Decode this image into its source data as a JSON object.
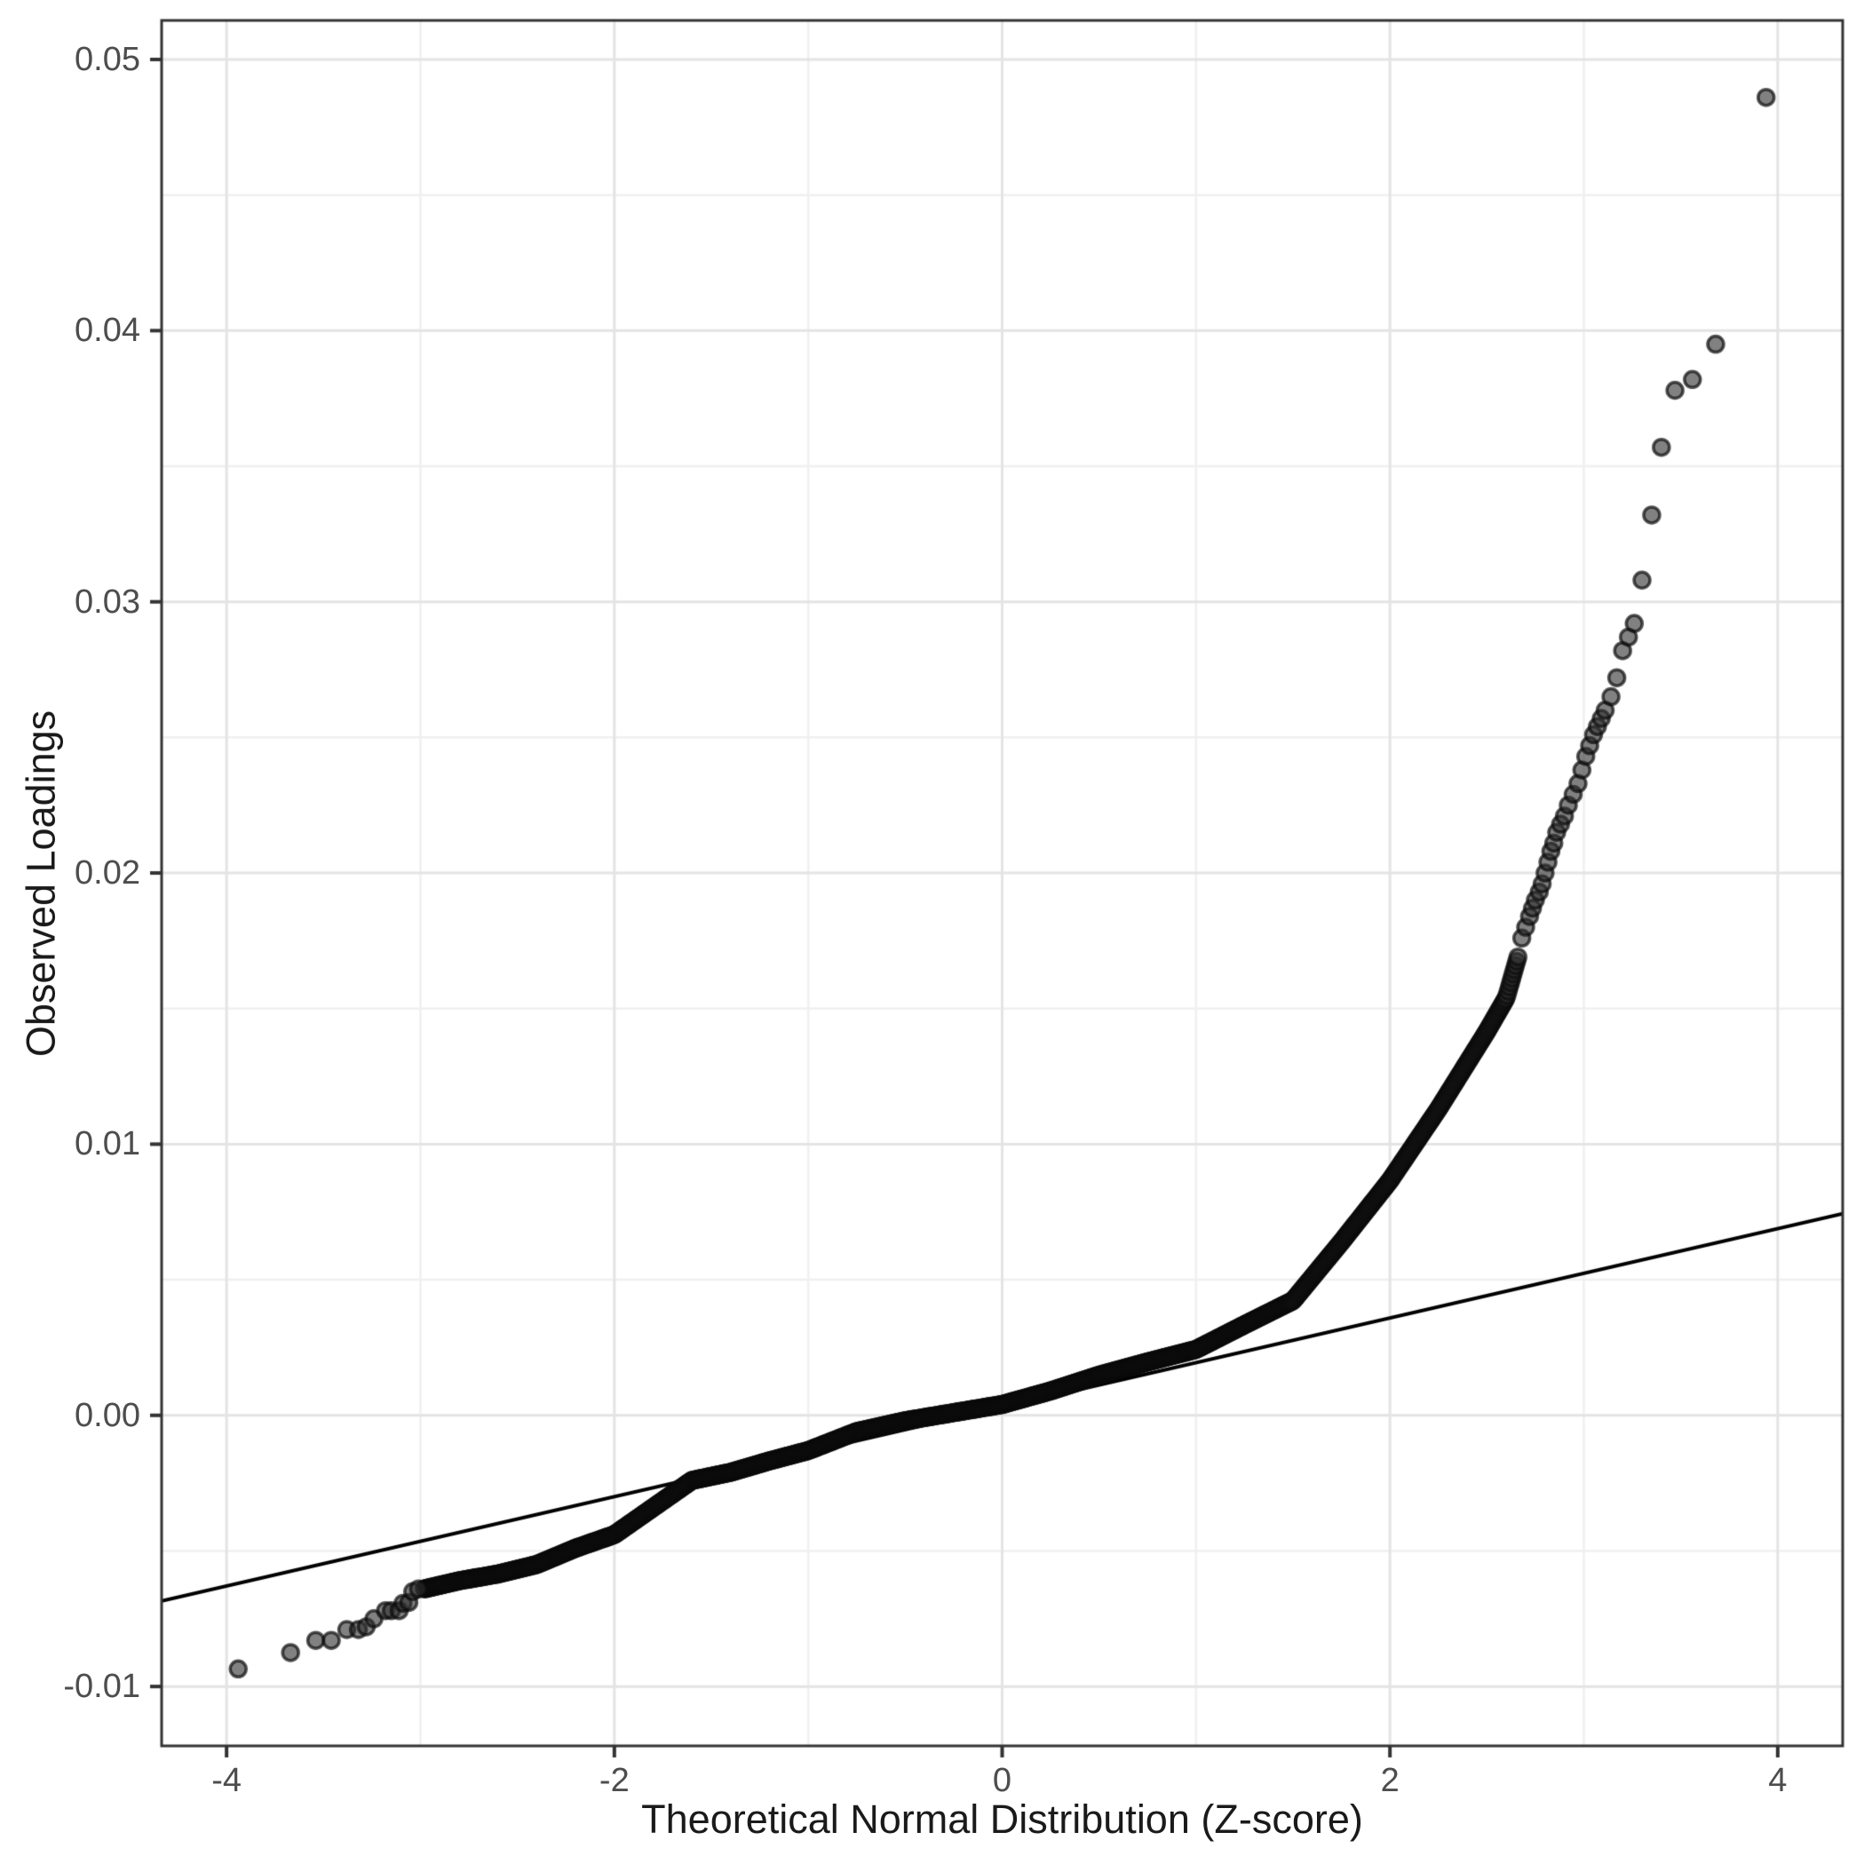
{
  "chart_data": {
    "type": "scatter",
    "subtype": "qq-plot",
    "title": "",
    "xlabel": "Theoretical Normal Distribution (Z-score)",
    "ylabel": "Observed Loadings",
    "grid": true,
    "legend": "none",
    "x_axis": {
      "range": [
        -4.335,
        4.335
      ],
      "ticks": [
        -4,
        -2,
        0,
        2,
        4
      ],
      "tick_labels": [
        "-4",
        "-2",
        "0",
        "2",
        "4"
      ],
      "minor_ticks": [
        -3,
        -1,
        1,
        3
      ]
    },
    "y_axis": {
      "range": [
        -0.01219,
        0.05144
      ],
      "ticks": [
        0.05,
        0.04,
        0.03,
        0.02,
        0.01,
        0.0,
        -0.01
      ],
      "tick_labels": [
        "0.05",
        "0.04",
        "0.03",
        "0.02",
        "0.01",
        "0.00",
        "-0.01"
      ],
      "minor_ticks": [
        0.045,
        0.035,
        0.025,
        0.015,
        0.005,
        -0.005
      ]
    },
    "reference_line": {
      "slope": 0.001648,
      "intercept": 0.000295,
      "color": "#000000",
      "width": 4
    },
    "series": {
      "dense_band": {
        "description": "densely overlapping observed-loading quantiles drawn as one point per sampled z",
        "z_start": -2.98,
        "z_end": 2.66,
        "n": 900,
        "anchors": [
          [
            -2.98,
            -0.0064
          ],
          [
            -2.8,
            -0.0061
          ],
          [
            -2.6,
            -0.00585
          ],
          [
            -2.4,
            -0.0055
          ],
          [
            -2.2,
            -0.0049
          ],
          [
            -2.0,
            -0.0044
          ],
          [
            -1.8,
            -0.0034
          ],
          [
            -1.6,
            -0.0024
          ],
          [
            -1.4,
            -0.0021
          ],
          [
            -1.2,
            -0.00168
          ],
          [
            -1.0,
            -0.0013
          ],
          [
            -0.75,
            -0.0006
          ],
          [
            -0.5,
            -0.0002
          ],
          [
            -0.25,
            0.0001
          ],
          [
            0.0,
            0.0004
          ],
          [
            0.25,
            0.0009
          ],
          [
            0.5,
            0.00148
          ],
          [
            0.75,
            0.00197
          ],
          [
            1.0,
            0.00243
          ],
          [
            1.25,
            0.00334
          ],
          [
            1.5,
            0.00423
          ],
          [
            1.75,
            0.0064
          ],
          [
            2.0,
            0.00866
          ],
          [
            2.25,
            0.0113
          ],
          [
            2.5,
            0.01416
          ],
          [
            2.6,
            0.0154
          ],
          [
            2.66,
            0.0169
          ]
        ]
      },
      "chain_points": [
        [
          2.68,
          0.0176
        ],
        [
          2.7,
          0.018
        ],
        [
          2.72,
          0.0184
        ],
        [
          2.735,
          0.0187
        ],
        [
          2.75,
          0.019
        ],
        [
          2.77,
          0.0193
        ],
        [
          2.785,
          0.0196
        ],
        [
          2.8,
          0.02
        ],
        [
          2.815,
          0.0204
        ],
        [
          2.83,
          0.0208
        ],
        [
          2.845,
          0.0211
        ],
        [
          2.86,
          0.0215
        ],
        [
          2.88,
          0.0218
        ],
        [
          2.9,
          0.0221
        ],
        [
          2.92,
          0.0225
        ],
        [
          2.945,
          0.0229
        ],
        [
          2.97,
          0.0233
        ],
        [
          2.99,
          0.0238
        ],
        [
          3.01,
          0.0243
        ],
        [
          3.03,
          0.0247
        ],
        [
          3.05,
          0.0251
        ],
        [
          3.07,
          0.0254
        ],
        [
          3.09,
          0.0257
        ],
        [
          3.11,
          0.026
        ],
        [
          3.14,
          0.0265
        ],
        [
          3.17,
          0.0272
        ],
        [
          3.2,
          0.0282
        ],
        [
          3.23,
          0.0287
        ],
        [
          3.26,
          0.0292
        ],
        [
          3.3,
          0.0308
        ],
        [
          3.35,
          0.0332
        ]
      ],
      "high_outliers": [
        [
          3.4,
          0.0357
        ],
        [
          3.47,
          0.0378
        ],
        [
          3.56,
          0.0382
        ],
        [
          3.68,
          0.0395
        ],
        [
          3.94,
          0.0486
        ]
      ],
      "low_tail_points": [
        [
          -3.94,
          -0.00935
        ],
        [
          -3.67,
          -0.00875
        ],
        [
          -3.54,
          -0.0083
        ],
        [
          -3.46,
          -0.0083
        ],
        [
          -3.38,
          -0.0079
        ],
        [
          -3.32,
          -0.0079
        ],
        [
          -3.28,
          -0.0078
        ],
        [
          -3.24,
          -0.0075
        ],
        [
          -3.18,
          -0.0072
        ],
        [
          -3.15,
          -0.0072
        ],
        [
          -3.11,
          -0.0072
        ],
        [
          -3.09,
          -0.00693
        ],
        [
          -3.06,
          -0.0069
        ],
        [
          -3.04,
          -0.0065
        ],
        [
          -3.01,
          -0.0064
        ]
      ]
    },
    "style": {
      "background": "#ffffff",
      "grid_major_color": "#e4e4e4",
      "grid_minor_color": "#f0f0f0",
      "panel_border_color": "#333333",
      "tick_color": "#333333",
      "tick_label_color": "#4d4d4d",
      "title_color": "#1a1a1a",
      "point_radius": 9,
      "point_fill": "rgba(45,45,45,0.6)",
      "point_stroke": "rgba(10,10,10,0.7)",
      "point_stroke_width": 3.5
    }
  }
}
